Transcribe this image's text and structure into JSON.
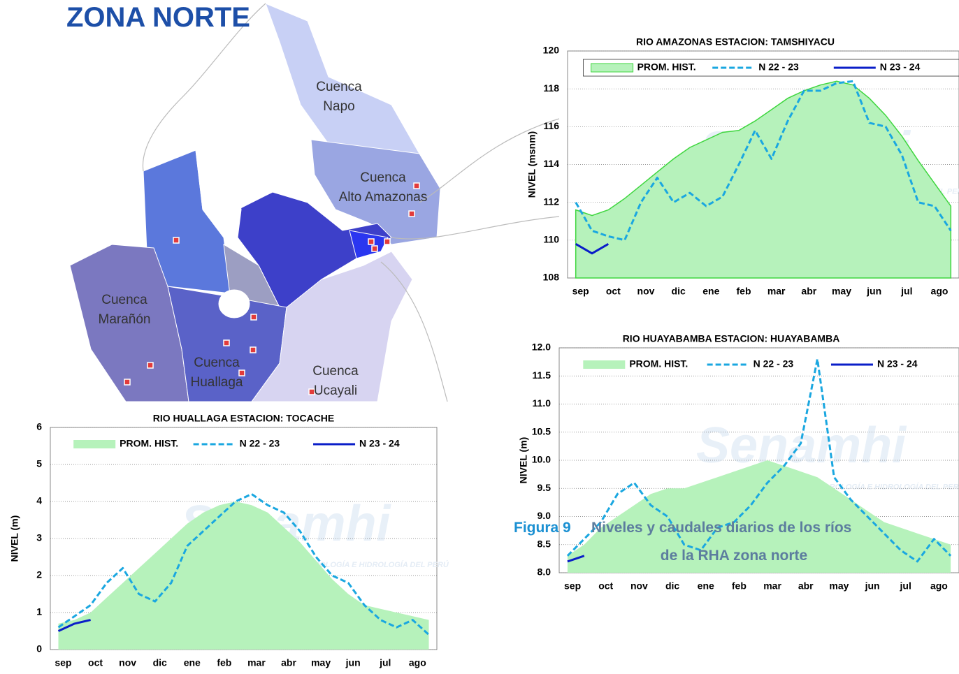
{
  "header": {
    "title": "ZONA NORTE"
  },
  "map": {
    "labels": [
      {
        "lines": [
          "Cuenca",
          "Napo"
        ]
      },
      {
        "lines": [
          "Cuenca",
          "Alto Amazonas"
        ]
      },
      {
        "lines": [
          "Cuenca",
          "Marañón"
        ]
      },
      {
        "lines": [
          "Cuenca",
          "Huallaga"
        ]
      },
      {
        "lines": [
          "Cuenca",
          "Ucayali"
        ]
      }
    ]
  },
  "watermark": {
    "name": "Senamhi",
    "subtitle": "SERVICIO NACIONAL DE METEOROLOGÍA E HIDROLOGÍA DEL PERÚ"
  },
  "chart_data": [
    {
      "type": "line",
      "title": "RIO AMAZONAS ESTACION: TAMSHIYACU",
      "ylabel": "NIVEL (msnm)",
      "categories": [
        "sep",
        null,
        "oct",
        null,
        "nov",
        null,
        "dic",
        null,
        "ene",
        null,
        "feb",
        null,
        "mar",
        null,
        "abr",
        null,
        "may",
        null,
        "jun",
        null,
        "jul",
        null,
        "ago",
        null
      ],
      "series": [
        {
          "name": "PROM. HIST.",
          "color": "#b6f2bb",
          "stroke": "#3fd63f",
          "style": "area",
          "values": [
            111.6,
            111.3,
            111.6,
            112.2,
            112.9,
            113.6,
            114.3,
            114.9,
            115.3,
            115.7,
            115.8,
            116.3,
            116.9,
            117.5,
            117.9,
            118.2,
            118.4,
            118.2,
            117.5,
            116.6,
            115.5,
            114.2,
            113.0,
            111.8
          ]
        },
        {
          "name": "N 22 - 23",
          "color": "#1aa7e0",
          "style": "dashed",
          "values": [
            112.0,
            110.5,
            110.2,
            110.0,
            112.0,
            113.3,
            112.0,
            112.5,
            111.8,
            112.3,
            114.0,
            115.8,
            114.3,
            116.3,
            117.9,
            117.9,
            118.3,
            118.4,
            116.2,
            116.0,
            114.5,
            112.0,
            111.8,
            110.5
          ]
        },
        {
          "name": "N 23 - 24",
          "color": "#0a1ec8",
          "style": "solid",
          "values": [
            109.8,
            109.3,
            109.8,
            null,
            null,
            null,
            null,
            null,
            null,
            null,
            null,
            null,
            null,
            null,
            null,
            null,
            null,
            null,
            null,
            null,
            null,
            null,
            null,
            null
          ]
        }
      ],
      "ylim": [
        108,
        120
      ],
      "yticks": [
        108,
        110,
        112,
        114,
        116,
        118,
        120
      ],
      "grid": true,
      "legend": "top",
      "legend_box": true
    },
    {
      "type": "line",
      "title": "RIO HUAYABAMBA ESTACION: HUAYABAMBA",
      "ylabel": "NIVEL (m)",
      "categories": [
        "sep",
        null,
        "oct",
        null,
        "nov",
        null,
        "dic",
        null,
        "ene",
        null,
        "feb",
        null,
        "mar",
        null,
        "abr",
        null,
        "may",
        null,
        "jun",
        null,
        "jul",
        null,
        "ago",
        null
      ],
      "series": [
        {
          "name": "PROM. HIST.",
          "color": "#b6f2bb",
          "style": "area",
          "values": [
            8.3,
            8.5,
            8.8,
            9.0,
            9.2,
            9.4,
            9.5,
            9.5,
            9.6,
            9.7,
            9.8,
            9.9,
            10.0,
            9.9,
            9.8,
            9.7,
            9.5,
            9.3,
            9.1,
            8.9,
            8.8,
            8.7,
            8.6,
            8.5
          ]
        },
        {
          "name": "N 22 - 23",
          "color": "#1aa7e0",
          "style": "dashed",
          "values": [
            8.3,
            8.6,
            8.9,
            9.4,
            9.6,
            9.2,
            9.0,
            8.5,
            8.4,
            8.8,
            8.9,
            9.2,
            9.6,
            9.9,
            10.3,
            11.8,
            9.7,
            9.3,
            9.0,
            8.7,
            8.4,
            8.2,
            8.6,
            8.3
          ]
        },
        {
          "name": "N 23 - 24",
          "color": "#0a1ec8",
          "style": "solid",
          "values": [
            8.2,
            8.3,
            null,
            null,
            null,
            null,
            null,
            null,
            null,
            null,
            null,
            null,
            null,
            null,
            null,
            null,
            null,
            null,
            null,
            null,
            null,
            null,
            null,
            null
          ]
        }
      ],
      "ylim": [
        8,
        12
      ],
      "yticks": [
        {
          "value": 8,
          "label": "8.0"
        },
        8.5,
        {
          "value": 9,
          "label": "9.0"
        },
        9.5,
        {
          "value": 10,
          "label": "10.0"
        },
        10.5,
        {
          "value": 11,
          "label": "11.0"
        },
        11.5,
        {
          "value": 12,
          "label": "12.0"
        }
      ],
      "grid": true,
      "legend": "top",
      "legend_box": false
    },
    {
      "type": "line",
      "title": "RIO HUALLAGA ESTACION: TOCACHE",
      "ylabel": "NIVEL (m)",
      "categories": [
        "sep",
        null,
        "oct",
        null,
        "nov",
        null,
        "dic",
        null,
        "ene",
        null,
        "feb",
        null,
        "mar",
        null,
        "abr",
        null,
        "may",
        null,
        "jun",
        null,
        "jul",
        null,
        "ago",
        null
      ],
      "series": [
        {
          "name": "PROM. HIST.",
          "color": "#b6f2bb",
          "style": "area",
          "values": [
            0.7,
            0.8,
            1.0,
            1.4,
            1.8,
            2.2,
            2.6,
            3.0,
            3.4,
            3.7,
            3.9,
            4.0,
            3.9,
            3.7,
            3.3,
            2.9,
            2.4,
            1.9,
            1.5,
            1.2,
            1.1,
            1.0,
            0.9,
            0.8
          ]
        },
        {
          "name": "N 22 - 23",
          "color": "#1aa7e0",
          "style": "dashed",
          "values": [
            0.6,
            0.9,
            1.2,
            1.8,
            2.2,
            1.5,
            1.3,
            1.8,
            2.8,
            3.2,
            3.6,
            4.0,
            4.2,
            3.9,
            3.7,
            3.2,
            2.5,
            2.0,
            1.8,
            1.2,
            0.8,
            0.6,
            0.8,
            0.4
          ]
        },
        {
          "name": "N 23 - 24",
          "color": "#0a1ec8",
          "style": "solid",
          "values": [
            0.5,
            0.7,
            0.8,
            null,
            null,
            null,
            null,
            null,
            null,
            null,
            null,
            null,
            null,
            null,
            null,
            null,
            null,
            null,
            null,
            null,
            null,
            null,
            null,
            null
          ]
        }
      ],
      "ylim": [
        0,
        6
      ],
      "yticks": [
        0,
        1,
        2,
        3,
        4,
        5,
        6
      ],
      "grid": true,
      "legend": "top",
      "legend_box": false
    }
  ],
  "caption": {
    "label": "Figura 9",
    "lines": [
      "Niveles y caudales diarios de los ríos",
      "de la RHA zona norte"
    ]
  }
}
